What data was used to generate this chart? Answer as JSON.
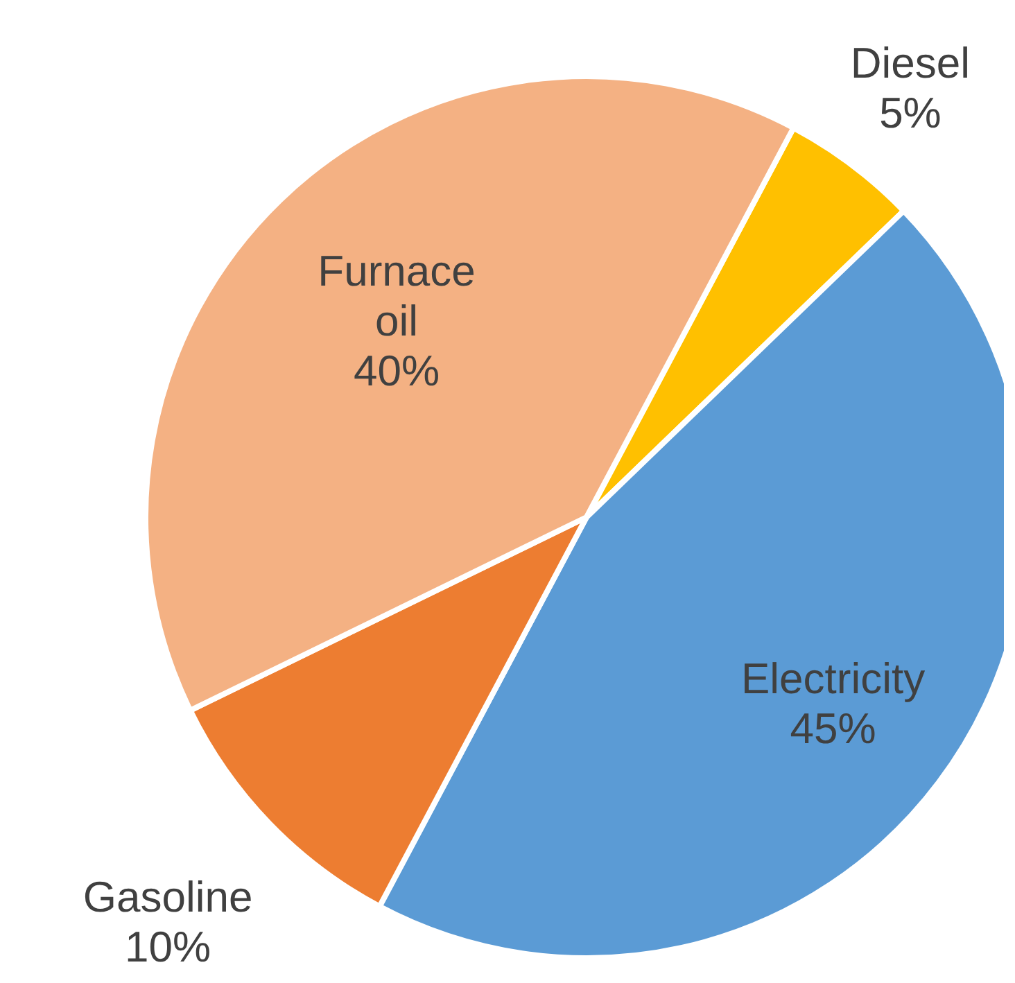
{
  "chart_data": {
    "type": "pie",
    "categories": [
      "Diesel",
      "Electricity",
      "Gasoline",
      "Furnace oil"
    ],
    "values": [
      5,
      45,
      10,
      40
    ],
    "value_labels": [
      "5%",
      "45%",
      "10%",
      "40%"
    ],
    "colors": [
      "#ffc000",
      "#5b9bd5",
      "#ed7d31",
      "#f4b183"
    ],
    "legend": false
  }
}
